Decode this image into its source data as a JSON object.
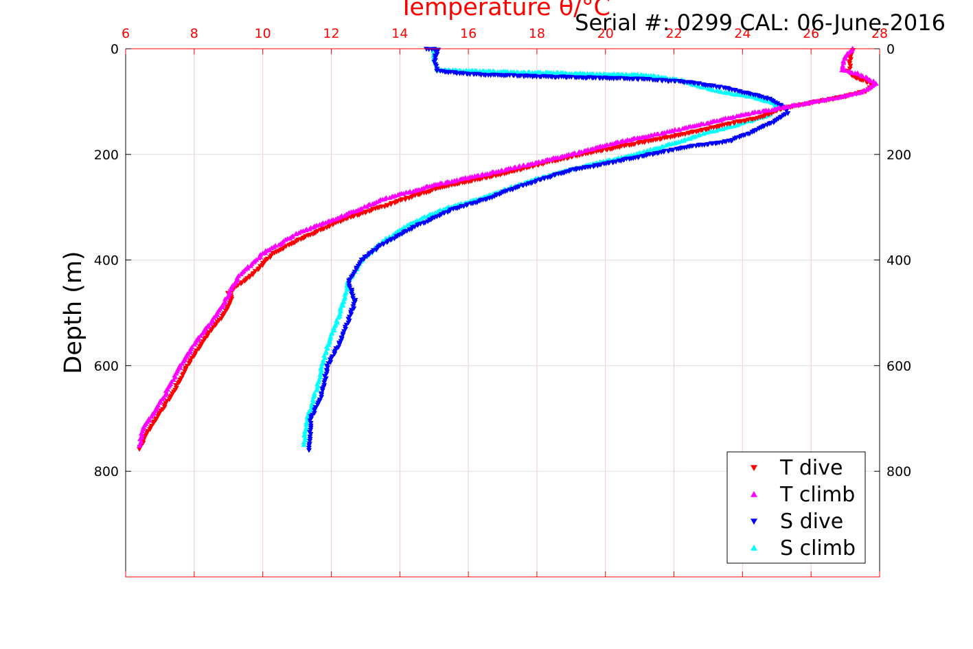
{
  "chart_data": {
    "type": "scatter",
    "title": "Temperature θ/°C",
    "subtitle": "Serial #: 0299 CAL: 06-June-2016",
    "xlabel": "Temperature θ/°C",
    "ylabel": "Depth (m)",
    "xlim": [
      6,
      28
    ],
    "ylim": [
      0,
      1000
    ],
    "y_reversed": true,
    "xticks": [
      "6",
      "8",
      "10",
      "12",
      "14",
      "16",
      "18",
      "20",
      "22",
      "24",
      "26",
      "28"
    ],
    "yticks": [
      "0",
      "200",
      "400",
      "600",
      "800"
    ],
    "grid": true,
    "legend_position": "bottom-right",
    "series": [
      {
        "name": "T dive",
        "marker": "triangle-down",
        "color": "#ff0000",
        "points": [
          [
            27.2,
            2
          ],
          [
            27.15,
            20
          ],
          [
            27.1,
            45
          ],
          [
            27.3,
            55
          ],
          [
            27.6,
            62
          ],
          [
            27.8,
            68
          ],
          [
            27.6,
            80
          ],
          [
            27.0,
            90
          ],
          [
            26.2,
            100
          ],
          [
            25.2,
            112
          ],
          [
            24.5,
            130
          ],
          [
            23.6,
            142
          ],
          [
            22.4,
            160
          ],
          [
            21.0,
            178
          ],
          [
            19.3,
            200
          ],
          [
            18.0,
            220
          ],
          [
            16.8,
            240
          ],
          [
            15.2,
            262
          ],
          [
            13.9,
            290
          ],
          [
            12.5,
            320
          ],
          [
            11.1,
            360
          ],
          [
            10.3,
            388
          ],
          [
            9.7,
            428
          ],
          [
            9.0,
            462
          ],
          [
            9.1,
            470
          ],
          [
            8.9,
            500
          ],
          [
            8.4,
            540
          ],
          [
            7.8,
            600
          ],
          [
            7.3,
            660
          ],
          [
            6.9,
            700
          ],
          [
            6.6,
            730
          ],
          [
            6.4,
            758
          ]
        ]
      },
      {
        "name": "T climb",
        "marker": "triangle-up",
        "color": "#ff00ff",
        "points": [
          [
            27.2,
            0
          ],
          [
            27.0,
            15
          ],
          [
            26.9,
            40
          ],
          [
            27.4,
            48
          ],
          [
            27.7,
            58
          ],
          [
            27.9,
            66
          ],
          [
            27.5,
            82
          ],
          [
            26.8,
            92
          ],
          [
            25.8,
            104
          ],
          [
            24.9,
            115
          ],
          [
            24.0,
            125
          ],
          [
            23.0,
            140
          ],
          [
            21.8,
            158
          ],
          [
            20.5,
            175
          ],
          [
            19.0,
            200
          ],
          [
            17.7,
            220
          ],
          [
            16.3,
            240
          ],
          [
            15.0,
            258
          ],
          [
            13.5,
            285
          ],
          [
            12.6,
            310
          ],
          [
            11.0,
            350
          ],
          [
            10.0,
            388
          ],
          [
            9.3,
            430
          ],
          [
            8.7,
            500
          ],
          [
            8.1,
            550
          ],
          [
            7.6,
            600
          ],
          [
            7.1,
            660
          ],
          [
            6.7,
            700
          ],
          [
            6.5,
            720
          ],
          [
            6.4,
            752
          ]
        ]
      },
      {
        "name": "S dive",
        "marker": "triangle-down",
        "color": "#0000ff",
        "points": [
          [
            14.8,
            0
          ],
          [
            15.1,
            2
          ],
          [
            15.0,
            25
          ],
          [
            15.1,
            42
          ],
          [
            16.0,
            48
          ],
          [
            17.8,
            52
          ],
          [
            19.8,
            55
          ],
          [
            21.3,
            58
          ],
          [
            22.5,
            64
          ],
          [
            23.3,
            72
          ],
          [
            24.0,
            82
          ],
          [
            24.8,
            95
          ],
          [
            25.2,
            110
          ],
          [
            25.3,
            122
          ],
          [
            25.0,
            135
          ],
          [
            24.2,
            160
          ],
          [
            23.6,
            175
          ],
          [
            22.5,
            185
          ],
          [
            21.3,
            200
          ],
          [
            20.2,
            215
          ],
          [
            19.0,
            230
          ],
          [
            17.5,
            260
          ],
          [
            16.5,
            285
          ],
          [
            15.5,
            305
          ],
          [
            14.5,
            335
          ],
          [
            13.5,
            370
          ],
          [
            12.9,
            400
          ],
          [
            12.5,
            440
          ],
          [
            12.6,
            460
          ],
          [
            12.7,
            480
          ],
          [
            12.3,
            550
          ],
          [
            11.9,
            600
          ],
          [
            11.7,
            660
          ],
          [
            11.4,
            700
          ],
          [
            11.35,
            760
          ]
        ]
      },
      {
        "name": "S climb",
        "marker": "triangle-up",
        "color": "#00ffff",
        "points": [
          [
            15.0,
            0
          ],
          [
            15.0,
            20
          ],
          [
            15.1,
            40
          ],
          [
            16.2,
            42
          ],
          [
            18.5,
            46
          ],
          [
            20.0,
            48
          ],
          [
            21.2,
            50
          ],
          [
            22.2,
            60
          ],
          [
            22.8,
            72
          ],
          [
            23.4,
            82
          ],
          [
            24.2,
            90
          ],
          [
            25.0,
            105
          ],
          [
            24.8,
            125
          ],
          [
            23.8,
            145
          ],
          [
            22.9,
            160
          ],
          [
            22.2,
            175
          ],
          [
            20.9,
            200
          ],
          [
            19.5,
            220
          ],
          [
            17.8,
            250
          ],
          [
            16.3,
            285
          ],
          [
            15.2,
            305
          ],
          [
            14.2,
            335
          ],
          [
            13.5,
            365
          ],
          [
            12.9,
            400
          ],
          [
            12.5,
            440
          ],
          [
            12.4,
            470
          ],
          [
            12.2,
            510
          ],
          [
            11.9,
            560
          ],
          [
            11.7,
            610
          ],
          [
            11.5,
            660
          ],
          [
            11.3,
            700
          ],
          [
            11.2,
            750
          ]
        ]
      }
    ]
  }
}
